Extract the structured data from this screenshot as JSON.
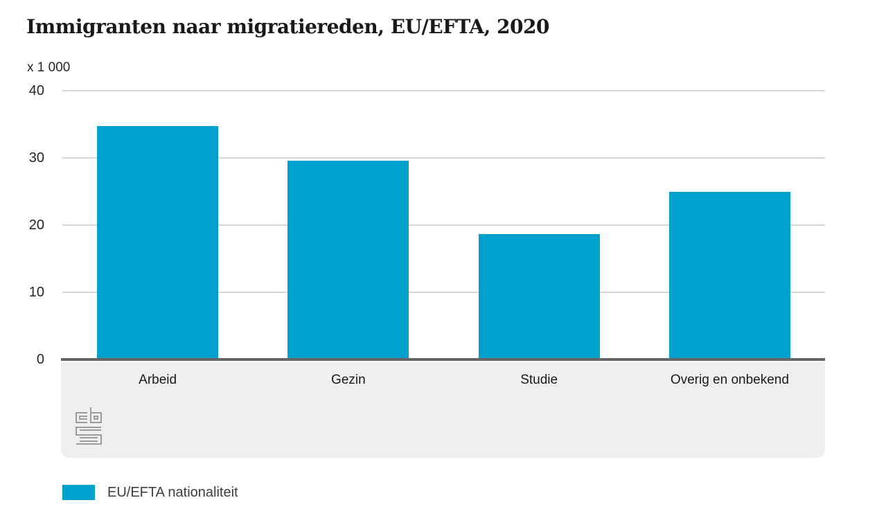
{
  "title": "Immigranten naar migratiereden, EU/EFTA, 2020",
  "unit_label": "x 1 000",
  "legend": {
    "label": "EU/EFTA nationaliteit",
    "swatch_color": "#00a1cd"
  },
  "icons": {
    "footer_logo": "cbs-logo"
  },
  "colors": {
    "bar_blue": "#00a1cd",
    "gridline": "#d6d6d6",
    "baseline": "#666666",
    "footer_band": "#efefef",
    "logo_gray": "#9c9c9c",
    "text_dark": "#191919"
  },
  "chart_data": {
    "type": "bar",
    "title": "Immigranten naar migratiereden, EU/EFTA, 2020",
    "unit": "x 1 000",
    "categories": [
      "Arbeid",
      "Gezin",
      "Studie",
      "Overig en onbekend"
    ],
    "series": [
      {
        "name": "EU/EFTA nationaliteit",
        "values": [
          34.7,
          29.6,
          18.7,
          24.9
        ],
        "color": "#00a1cd"
      }
    ],
    "xlabel": "",
    "ylabel": "x 1 000",
    "ylim": [
      0,
      40
    ],
    "yticks": [
      0,
      10,
      20,
      30,
      40
    ],
    "grid": true,
    "legend_position": "bottom"
  }
}
